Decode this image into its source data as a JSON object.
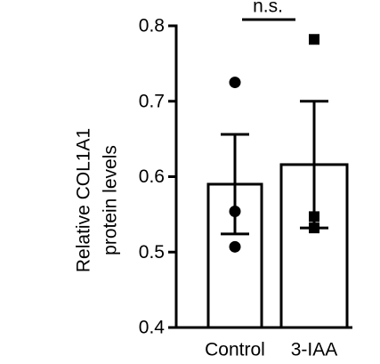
{
  "chart_data": {
    "type": "bar",
    "ylabel": [
      "Relative COL1A1",
      "protein levels"
    ],
    "annotation": "n.s.",
    "categories": [
      "Control",
      "3-IAA"
    ],
    "values": [
      0.59,
      0.616
    ],
    "errors": [
      0.066,
      0.084
    ],
    "points": [
      [
        0.725,
        0.554,
        0.507
      ],
      [
        0.782,
        0.547,
        0.532
      ]
    ],
    "markers": [
      "circle",
      "square"
    ],
    "color": "#ffffff",
    "ylim": [
      0.4,
      0.8
    ],
    "yticks": [
      0.4,
      0.5,
      0.6,
      0.7,
      0.8
    ]
  }
}
